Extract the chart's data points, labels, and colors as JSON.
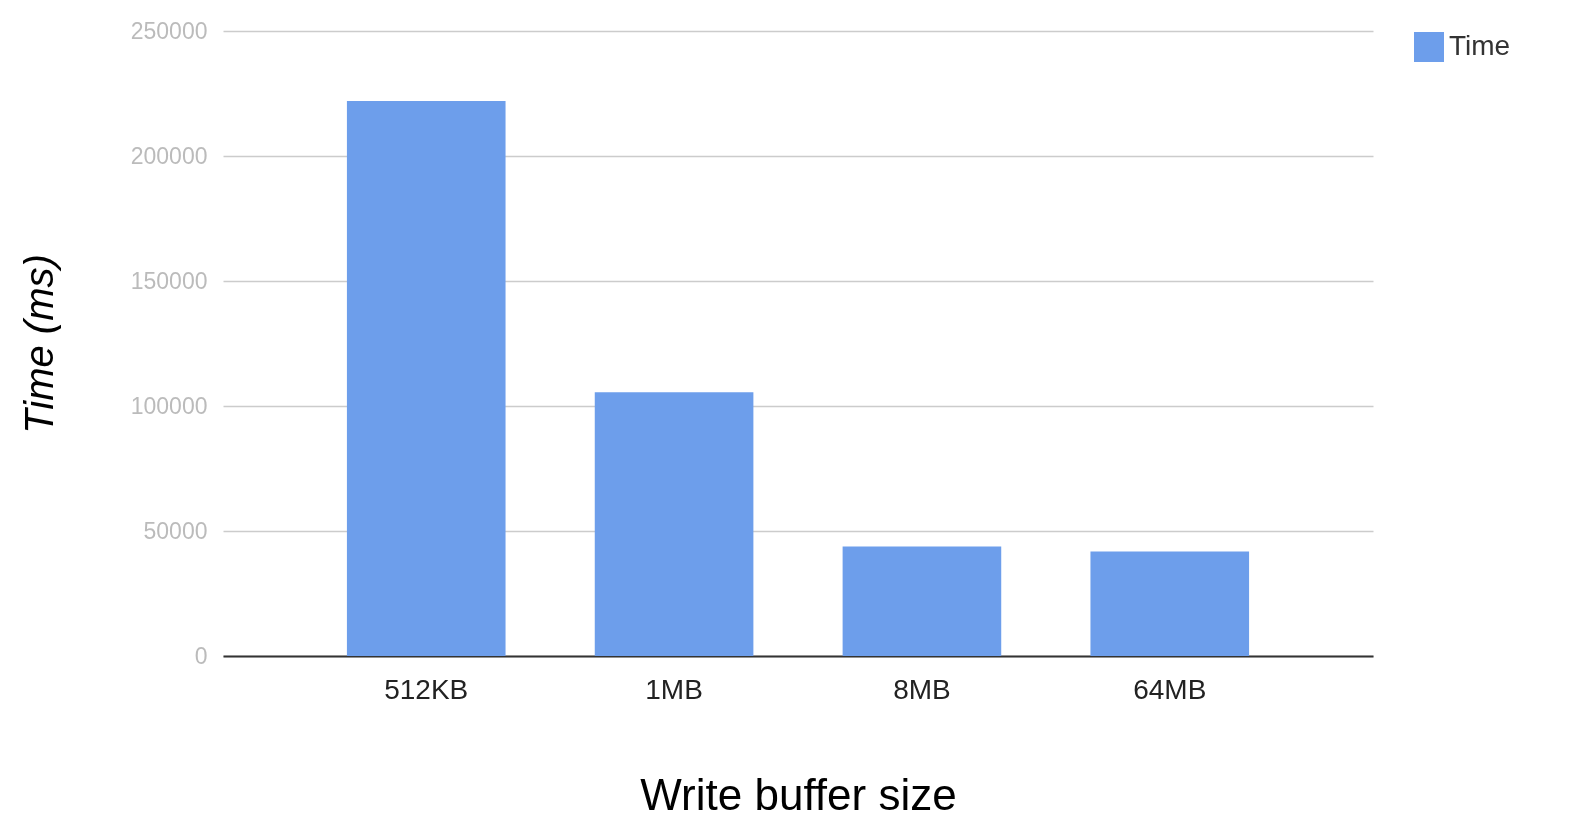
{
  "chart_data": {
    "type": "bar",
    "xlabel": "Write buffer size",
    "ylabel": "Time (ms)",
    "categories": [
      "512KB",
      "1MB",
      "8MB",
      "64MB"
    ],
    "series": [
      {
        "name": "Time",
        "color": "#6d9eeb",
        "values": [
          222000,
          105500,
          43800,
          41800
        ]
      }
    ],
    "ylim": [
      0,
      250000
    ],
    "yticks": [
      0,
      50000,
      100000,
      150000,
      200000,
      250000
    ],
    "grid": "y",
    "legend": "top right"
  }
}
